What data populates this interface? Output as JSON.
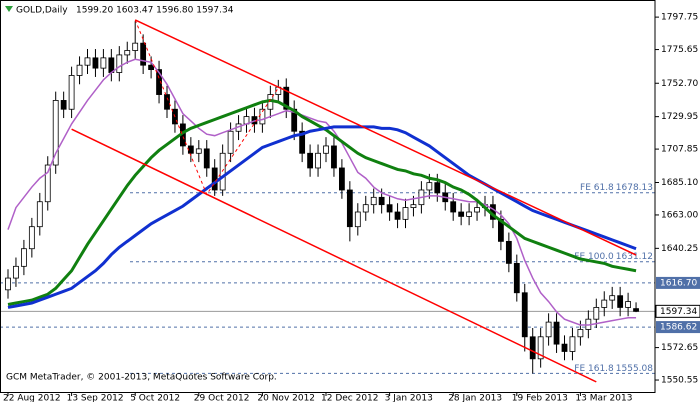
{
  "chart_data": {
    "type": "candlestick",
    "symbol": "GOLD,Daily",
    "ohlc_label": "1599.20 1603.47 1596.80 1597.34",
    "footer": "GCM MetaTrader, © 2001-2013, MetaQuotes Software Corp.",
    "categories": [
      "22 Aug 2012",
      null,
      null,
      null,
      null,
      null,
      null,
      null,
      "13 Sep 2012",
      null,
      null,
      null,
      null,
      null,
      null,
      null,
      "5 Oct 2012",
      null,
      null,
      null,
      null,
      null,
      null,
      null,
      "29 Oct 2012",
      null,
      null,
      null,
      null,
      null,
      null,
      null,
      "20 Nov 2012",
      null,
      null,
      null,
      null,
      null,
      null,
      null,
      "12 Dec 2012",
      null,
      null,
      null,
      null,
      null,
      null,
      null,
      "3 Jan 2013",
      null,
      null,
      null,
      null,
      null,
      null,
      null,
      "28 Jan 2013",
      null,
      null,
      null,
      null,
      null,
      null,
      null,
      "19 Feb 2013",
      null,
      null,
      null,
      null,
      null,
      null,
      null,
      "13 Mar 2013",
      null,
      null,
      null,
      null,
      null,
      null,
      null
    ],
    "open": [
      1612,
      1620,
      1628,
      1640,
      1655,
      1672,
      1697,
      1741,
      1735,
      1758,
      1765,
      1770,
      1763,
      1770,
      1760,
      1772,
      1775,
      1780,
      1765,
      1762,
      1745,
      1735,
      1725,
      1710,
      1705,
      1708,
      1695,
      1680,
      1705,
      1720,
      1725,
      1730,
      1725,
      1735,
      1745,
      1750,
      1735,
      1720,
      1705,
      1695,
      1705,
      1710,
      1695,
      1680,
      1655,
      1665,
      1670,
      1675,
      1670,
      1665,
      1660,
      1668,
      1670,
      1680,
      1685,
      1678,
      1672,
      1665,
      1662,
      1665,
      1668,
      1670,
      1660,
      1645,
      1630,
      1610,
      1580,
      1565,
      1580,
      1590,
      1575,
      1570,
      1580,
      1585,
      1592,
      1600,
      1605,
      1608,
      1600,
      1599.2
    ],
    "high": [
      1626,
      1634,
      1646,
      1661,
      1678,
      1703,
      1747,
      1747,
      1764,
      1771,
      1776,
      1776,
      1776,
      1776,
      1778,
      1781,
      1795,
      1786,
      1771,
      1768,
      1751,
      1741,
      1731,
      1716,
      1714,
      1714,
      1701,
      1711,
      1726,
      1731,
      1736,
      1736,
      1741,
      1751,
      1755,
      1756,
      1741,
      1726,
      1711,
      1711,
      1716,
      1716,
      1701,
      1686,
      1671,
      1676,
      1681,
      1681,
      1676,
      1671,
      1674,
      1676,
      1686,
      1691,
      1691,
      1684,
      1678,
      1671,
      1671,
      1674,
      1676,
      1676,
      1666,
      1651,
      1636,
      1616,
      1586,
      1586,
      1596,
      1596,
      1581,
      1586,
      1591,
      1598,
      1606,
      1611,
      1614,
      1614,
      1610,
      1603.47
    ],
    "low": [
      1606,
      1614,
      1622,
      1634,
      1649,
      1666,
      1691,
      1729,
      1729,
      1752,
      1759,
      1757,
      1757,
      1754,
      1754,
      1766,
      1769,
      1759,
      1756,
      1739,
      1729,
      1719,
      1704,
      1699,
      1699,
      1689,
      1676,
      1676,
      1699,
      1714,
      1719,
      1719,
      1719,
      1729,
      1739,
      1729,
      1714,
      1699,
      1689,
      1689,
      1699,
      1689,
      1674,
      1645,
      1649,
      1659,
      1664,
      1664,
      1659,
      1654,
      1654,
      1662,
      1664,
      1674,
      1672,
      1666,
      1659,
      1656,
      1656,
      1659,
      1662,
      1654,
      1639,
      1624,
      1604,
      1570,
      1555,
      1559,
      1574,
      1569,
      1564,
      1564,
      1574,
      1579,
      1586,
      1594,
      1599,
      1594,
      1594,
      1596.8
    ],
    "close": [
      1620,
      1628,
      1640,
      1655,
      1672,
      1697,
      1741,
      1735,
      1758,
      1765,
      1770,
      1763,
      1770,
      1760,
      1772,
      1775,
      1780,
      1765,
      1762,
      1745,
      1735,
      1725,
      1710,
      1705,
      1708,
      1695,
      1680,
      1705,
      1720,
      1725,
      1730,
      1725,
      1735,
      1745,
      1750,
      1735,
      1720,
      1705,
      1695,
      1705,
      1710,
      1695,
      1680,
      1655,
      1665,
      1670,
      1675,
      1670,
      1665,
      1660,
      1668,
      1670,
      1680,
      1685,
      1678,
      1672,
      1665,
      1662,
      1665,
      1668,
      1670,
      1660,
      1645,
      1630,
      1610,
      1580,
      1565,
      1580,
      1590,
      1575,
      1570,
      1580,
      1585,
      1592,
      1600,
      1605,
      1608,
      1600,
      1604,
      1597.34
    ],
    "up_color": "#ffffff",
    "down_color": "#000000",
    "wick_color": "#000000",
    "series": [
      {
        "color": "#b060c8",
        "values": [
          1653,
          1668,
          1675,
          1682,
          1688,
          1692,
          1705,
          1715,
          1725,
          1733,
          1741,
          1748,
          1755,
          1760,
          1764,
          1767,
          1769,
          1768,
          1767,
          1760,
          1752,
          1742,
          1732,
          1727,
          1722,
          1718,
          1717,
          1719,
          1721,
          1723,
          1725,
          1727,
          1728,
          1730,
          1732,
          1734,
          1733,
          1731,
          1729,
          1727,
          1726,
          1720,
          1712,
          1702,
          1692,
          1688,
          1682,
          1678,
          1676,
          1674,
          1673,
          1674,
          1675,
          1676,
          1676,
          1675,
          1674,
          1673,
          1672,
          1672,
          1670,
          1667,
          1663,
          1657,
          1647,
          1632,
          1620,
          1610,
          1604,
          1597,
          1592,
          1590,
          1588,
          1588,
          1589,
          1590,
          1591,
          1592,
          1593,
          1593
        ]
      },
      {
        "color": "#108010",
        "values": [
          1602,
          1603,
          1604,
          1605,
          1607,
          1609,
          1613,
          1619,
          1625,
          1634,
          1643,
          1651,
          1659,
          1667,
          1675,
          1683,
          1690,
          1696,
          1702,
          1707,
          1711,
          1715,
          1719,
          1722,
          1724,
          1726,
          1728,
          1730,
          1732,
          1734,
          1736,
          1738,
          1740,
          1741,
          1740,
          1737,
          1734,
          1730,
          1727,
          1724,
          1721,
          1717,
          1713,
          1709,
          1705,
          1702,
          1700,
          1698,
          1696,
          1694,
          1693,
          1691,
          1690,
          1688,
          1687,
          1685,
          1682,
          1680,
          1677,
          1673,
          1668,
          1663,
          1659,
          1655,
          1651,
          1647,
          1645,
          1643,
          1641,
          1639,
          1637,
          1635,
          1633,
          1632,
          1631,
          1630,
          1628,
          1627,
          1626,
          1625
        ]
      },
      {
        "color": "#1030d0",
        "values": [
          1600,
          1601,
          1602,
          1603,
          1605,
          1607,
          1609,
          1611,
          1613,
          1617,
          1621,
          1625,
          1630,
          1636,
          1641,
          1645,
          1649,
          1653,
          1657,
          1660,
          1663,
          1666,
          1669,
          1673,
          1677,
          1681,
          1685,
          1689,
          1693,
          1697,
          1701,
          1705,
          1709,
          1711,
          1713,
          1715,
          1717,
          1718,
          1720,
          1721,
          1722,
          1723,
          1723,
          1723,
          1723,
          1723,
          1723,
          1722,
          1722,
          1721,
          1719,
          1716,
          1713,
          1710,
          1706,
          1702,
          1698,
          1694,
          1690,
          1687,
          1684,
          1681,
          1678,
          1675,
          1672,
          1669,
          1666,
          1664,
          1662,
          1660,
          1658,
          1656,
          1654,
          1652,
          1650,
          1648,
          1646,
          1644,
          1642,
          1640
        ]
      }
    ],
    "lines": [
      {
        "color": "#ff0000",
        "dash": false,
        "x": [
          16,
          79
        ],
        "y": [
          1795.8,
          1635.7
        ]
      },
      {
        "color": "#ff0000",
        "dash": false,
        "x": [
          8,
          74
        ],
        "y": [
          1721.4,
          1549.3
        ]
      },
      {
        "color": "#ff0000",
        "dash": true,
        "x": [
          16,
          25,
          34
        ],
        "y": [
          1795.8,
          1677,
          1749.5
        ]
      }
    ],
    "levels": [
      {
        "name": "FE 61.8",
        "value": 1678.13
      },
      {
        "name": "FE 100.0",
        "value": 1631.12
      },
      {
        "name": "FE 161.8",
        "value": 1555.08
      }
    ],
    "price_marks": [
      {
        "value": 1616.7,
        "label": "1616.70"
      },
      {
        "value": 1586.62,
        "label": "1586.62"
      }
    ],
    "current_price": 1597.34,
    "level_color": "#5070a8",
    "ylim": [
      1542.4,
      1806
    ],
    "yticks": [
      1797.75,
      1775.65,
      {
        "value": 1752.7,
        "label": "1752.70"
      },
      1729.95,
      1707.85,
      {
        "value": 1685.1,
        "label": "1685.10"
      },
      {
        "value": 1663,
        "label": "1663.00"
      },
      1640.25,
      1572.65,
      1550.55
    ]
  }
}
